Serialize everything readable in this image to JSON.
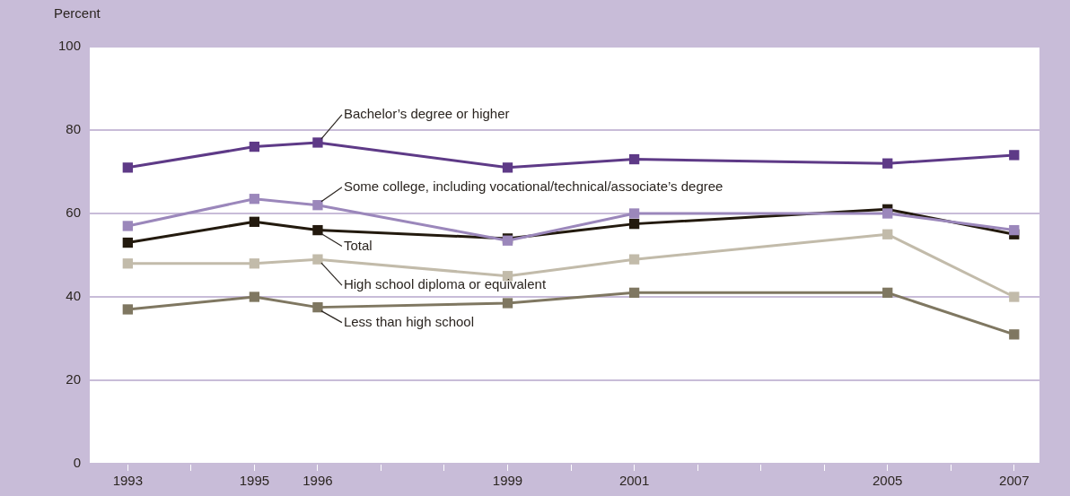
{
  "chart_data": {
    "type": "line",
    "ylabel": "Percent",
    "x": [
      1993,
      1995,
      1996,
      1999,
      2001,
      2005,
      2007
    ],
    "xlim": [
      1992.4,
      2007.4
    ],
    "xticks": [
      1993,
      {
        "value": 1994,
        "label": null
      },
      1995,
      1996,
      {
        "value": 1997,
        "label": null
      },
      {
        "value": 1998,
        "label": null
      },
      1999,
      {
        "value": 2000,
        "label": null
      },
      2001,
      {
        "value": 2002,
        "label": null
      },
      {
        "value": 2003,
        "label": null
      },
      {
        "value": 2004,
        "label": null
      },
      2005,
      {
        "value": 2006,
        "label": null
      },
      2007
    ],
    "ylim": [
      0,
      100
    ],
    "yticks": [
      0,
      20,
      40,
      60,
      80,
      100
    ],
    "grid": "y",
    "legend": false,
    "marker": "square",
    "line_style": "solid",
    "series": [
      {
        "name": "Bachelor’s degree or higher",
        "color": "#5e3a87",
        "values": [
          71,
          76,
          77,
          71,
          73,
          72,
          74
        ]
      },
      {
        "name": "Some college, including vocational/technical/associate’s degree",
        "color": "#9b87bb",
        "values": [
          57,
          63.5,
          62,
          53.5,
          60,
          60,
          56
        ]
      },
      {
        "name": "Total",
        "color": "#231a0e",
        "values": [
          53,
          58,
          56,
          54,
          57.5,
          61,
          55
        ]
      },
      {
        "name": "High school diploma or equivalent",
        "color": "#c2bbaa",
        "values": [
          48,
          48,
          49,
          45,
          49,
          55,
          40
        ]
      },
      {
        "name": "Less than high school",
        "color": "#7f7761",
        "values": [
          37,
          40,
          37.5,
          38.5,
          41,
          41,
          31
        ]
      }
    ]
  }
}
